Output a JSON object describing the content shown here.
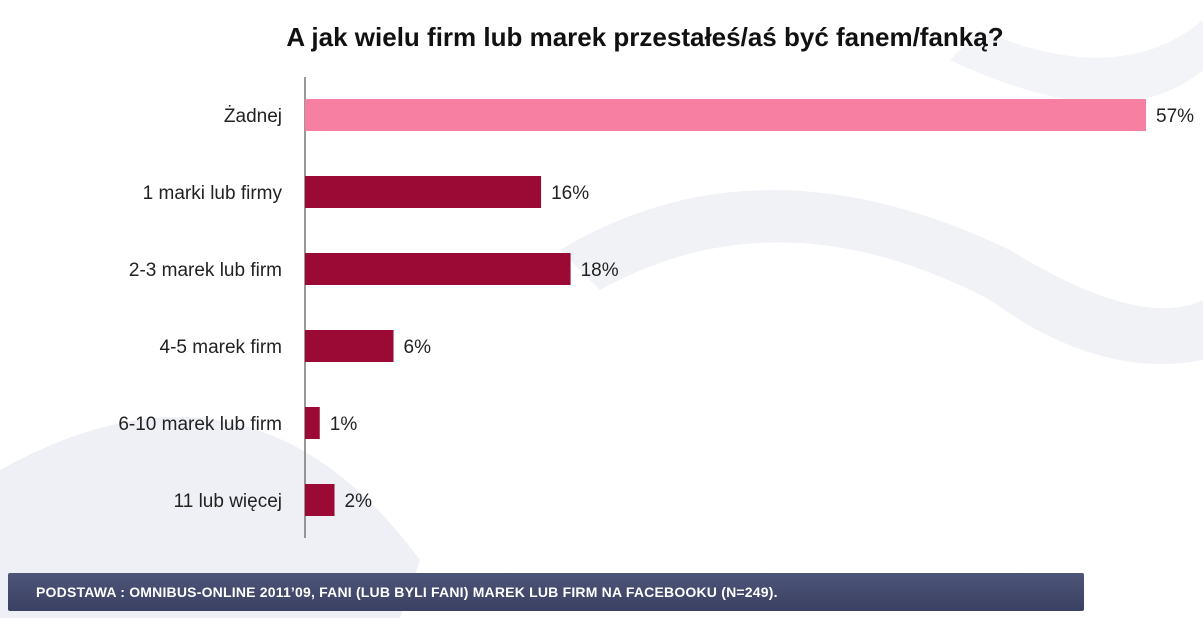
{
  "chart_data": {
    "type": "bar",
    "orientation": "horizontal",
    "title": "A jak wielu firm lub marek przestałeś/aś być fanem/fanką?",
    "categories": [
      "Żadnej",
      "1 marki lub firmy",
      "2-3 marek lub firm",
      "4-5 marek firm",
      "6-10 marek lub firm",
      "11 lub więcej"
    ],
    "values": [
      57,
      16,
      18,
      6,
      1,
      2
    ],
    "value_labels": [
      "57%",
      "16%",
      "18%",
      "6%",
      "1%",
      "2%"
    ],
    "unit": "%",
    "xlim": [
      0,
      57
    ],
    "grid": false,
    "colors": [
      "#f77fa2",
      "#9b0a35",
      "#9b0a35",
      "#9b0a35",
      "#9b0a35",
      "#9b0a35"
    ]
  },
  "footer": {
    "source": "PODSTAWA : OMNIBUS-ONLINE 2011’09, FANI (LUB BYLI FANI) MAREK LUB FIRM NA FACEBOOKU (N=249)."
  }
}
